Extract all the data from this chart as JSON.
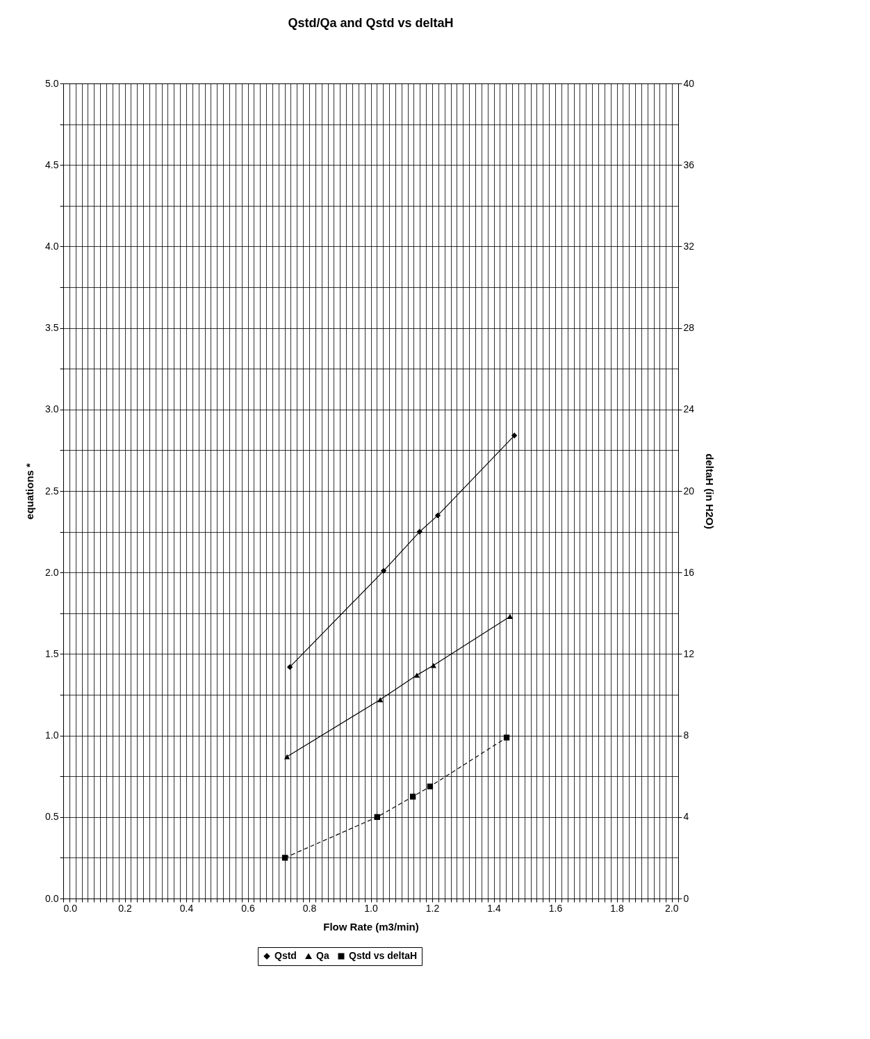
{
  "chart_data": {
    "type": "line",
    "title": "Qstd/Qa and Qstd vs deltaH",
    "xlabel": "Flow Rate (m3/min)",
    "ylabel": "equations *",
    "y2label": "deltaH (in H2O)",
    "series": [
      {
        "name": "Qstd",
        "color": "#000000",
        "marker": "diamond",
        "line_style": "solid",
        "x": [
          0.737,
          1.042,
          1.159,
          1.218,
          1.467
        ],
        "values": [
          1.42,
          2.01,
          2.25,
          2.35,
          2.84
        ]
      },
      {
        "name": "Qa",
        "color": "#000000",
        "marker": "triangle",
        "line_style": "solid",
        "x": [
          0.728,
          1.031,
          1.15,
          1.204,
          1.453
        ],
        "values": [
          0.87,
          1.22,
          1.37,
          1.43,
          1.73
        ]
      },
      {
        "name": "Qstd vs deltaH",
        "color": "#000000",
        "marker": "square",
        "line_style": "dashed",
        "axis": "y2",
        "x": [
          0.721,
          1.021,
          1.137,
          1.193,
          1.442
        ],
        "values": [
          2.0,
          4.0,
          5.0,
          5.5,
          7.9
        ]
      }
    ],
    "xlim": [
      0,
      2
    ],
    "xticks": [
      {
        "value": 0,
        "label": "0.0"
      },
      {
        "value": 0.02,
        "label": null
      },
      {
        "value": 0.04,
        "label": null
      },
      {
        "value": 0.06,
        "label": null
      },
      {
        "value": 0.08,
        "label": null
      },
      {
        "value": 0.1,
        "label": null
      },
      {
        "value": 0.12,
        "label": null
      },
      {
        "value": 0.14,
        "label": null
      },
      {
        "value": 0.16,
        "label": null
      },
      {
        "value": 0.18,
        "label": null
      },
      0.2,
      {
        "value": 0.22,
        "label": null
      },
      {
        "value": 0.24,
        "label": null
      },
      {
        "value": 0.26,
        "label": null
      },
      {
        "value": 0.28,
        "label": null
      },
      {
        "value": 0.3,
        "label": null
      },
      {
        "value": 0.32,
        "label": null
      },
      {
        "value": 0.34,
        "label": null
      },
      {
        "value": 0.36,
        "label": null
      },
      {
        "value": 0.38,
        "label": null
      },
      0.4,
      {
        "value": 0.42,
        "label": null
      },
      {
        "value": 0.44,
        "label": null
      },
      {
        "value": 0.46,
        "label": null
      },
      {
        "value": 0.48,
        "label": null
      },
      {
        "value": 0.5,
        "label": null
      },
      {
        "value": 0.52,
        "label": null
      },
      {
        "value": 0.54,
        "label": null
      },
      {
        "value": 0.56,
        "label": null
      },
      {
        "value": 0.58,
        "label": null
      },
      0.6,
      {
        "value": 0.62,
        "label": null
      },
      {
        "value": 0.64,
        "label": null
      },
      {
        "value": 0.66,
        "label": null
      },
      {
        "value": 0.68,
        "label": null
      },
      {
        "value": 0.7,
        "label": null
      },
      {
        "value": 0.72,
        "label": null
      },
      {
        "value": 0.74,
        "label": null
      },
      {
        "value": 0.76,
        "label": null
      },
      {
        "value": 0.78,
        "label": null
      },
      0.8,
      {
        "value": 0.82,
        "label": null
      },
      {
        "value": 0.84,
        "label": null
      },
      {
        "value": 0.86,
        "label": null
      },
      {
        "value": 0.88,
        "label": null
      },
      {
        "value": 0.9,
        "label": null
      },
      {
        "value": 0.92,
        "label": null
      },
      {
        "value": 0.94,
        "label": null
      },
      {
        "value": 0.96,
        "label": null
      },
      {
        "value": 0.98,
        "label": null
      },
      {
        "value": 1,
        "label": "1.0"
      },
      {
        "value": 1.02,
        "label": null
      },
      {
        "value": 1.04,
        "label": null
      },
      {
        "value": 1.06,
        "label": null
      },
      {
        "value": 1.08,
        "label": null
      },
      {
        "value": 1.1,
        "label": null
      },
      {
        "value": 1.12,
        "label": null
      },
      {
        "value": 1.14,
        "label": null
      },
      {
        "value": 1.16,
        "label": null
      },
      {
        "value": 1.18,
        "label": null
      },
      1.2,
      {
        "value": 1.22,
        "label": null
      },
      {
        "value": 1.24,
        "label": null
      },
      {
        "value": 1.26,
        "label": null
      },
      {
        "value": 1.28,
        "label": null
      },
      {
        "value": 1.3,
        "label": null
      },
      {
        "value": 1.32,
        "label": null
      },
      {
        "value": 1.34,
        "label": null
      },
      {
        "value": 1.36,
        "label": null
      },
      {
        "value": 1.38,
        "label": null
      },
      1.4,
      {
        "value": 1.42,
        "label": null
      },
      {
        "value": 1.44,
        "label": null
      },
      {
        "value": 1.46,
        "label": null
      },
      {
        "value": 1.48,
        "label": null
      },
      {
        "value": 1.5,
        "label": null
      },
      {
        "value": 1.52,
        "label": null
      },
      {
        "value": 1.54,
        "label": null
      },
      {
        "value": 1.56,
        "label": null
      },
      {
        "value": 1.58,
        "label": null
      },
      1.6,
      {
        "value": 1.62,
        "label": null
      },
      {
        "value": 1.64,
        "label": null
      },
      {
        "value": 1.66,
        "label": null
      },
      {
        "value": 1.68,
        "label": null
      },
      {
        "value": 1.7,
        "label": null
      },
      {
        "value": 1.72,
        "label": null
      },
      {
        "value": 1.74,
        "label": null
      },
      {
        "value": 1.76,
        "label": null
      },
      {
        "value": 1.78,
        "label": null
      },
      1.8,
      {
        "value": 1.82,
        "label": null
      },
      {
        "value": 1.84,
        "label": null
      },
      {
        "value": 1.86,
        "label": null
      },
      {
        "value": 1.88,
        "label": null
      },
      {
        "value": 1.9,
        "label": null
      },
      {
        "value": 1.92,
        "label": null
      },
      {
        "value": 1.94,
        "label": null
      },
      {
        "value": 1.96,
        "label": null
      },
      {
        "value": 1.98,
        "label": null
      },
      {
        "value": 2,
        "label": "2.0"
      }
    ],
    "ylim": [
      0,
      5
    ],
    "yticks": [
      {
        "value": 0,
        "label": "0.0"
      },
      {
        "value": 0.25,
        "label": null
      },
      0.5,
      {
        "value": 0.75,
        "label": null
      },
      {
        "value": 1,
        "label": "1.0"
      },
      {
        "value": 1.25,
        "label": null
      },
      1.5,
      {
        "value": 1.75,
        "label": null
      },
      {
        "value": 2,
        "label": "2.0"
      },
      {
        "value": 2.25,
        "label": null
      },
      2.5,
      {
        "value": 2.75,
        "label": null
      },
      {
        "value": 3,
        "label": "3.0"
      },
      {
        "value": 3.25,
        "label": null
      },
      3.5,
      {
        "value": 3.75,
        "label": null
      },
      {
        "value": 4,
        "label": "4.0"
      },
      {
        "value": 4.25,
        "label": null
      },
      4.5,
      {
        "value": 4.75,
        "label": null
      },
      {
        "value": 5,
        "label": "5.0"
      }
    ],
    "y2lim": [
      0,
      40
    ],
    "y2ticks": [
      0,
      4,
      8,
      12,
      16,
      20,
      24,
      28,
      32,
      36,
      40
    ],
    "grid": true,
    "legend": "bottom"
  }
}
